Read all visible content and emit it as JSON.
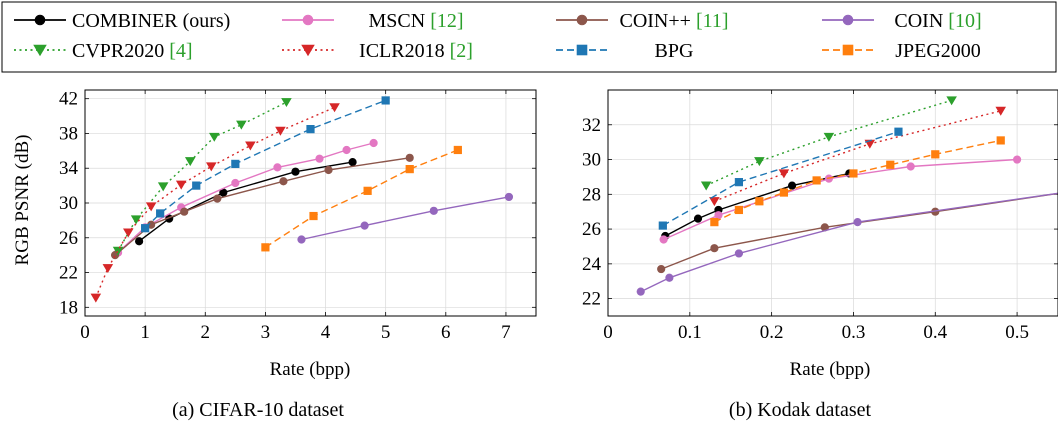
{
  "legend": [
    {
      "label": "COMBINER (ours)",
      "ref": "",
      "color": "#000000",
      "dash": "solid",
      "marker": "circle"
    },
    {
      "label": "MSCN ",
      "ref": "[12]",
      "color": "#e377c2",
      "dash": "solid",
      "marker": "circle"
    },
    {
      "label": "COIN++ ",
      "ref": "[11]",
      "color": "#8c564b",
      "dash": "solid",
      "marker": "circle"
    },
    {
      "label": "COIN ",
      "ref": "[10]",
      "color": "#9467bd",
      "dash": "solid",
      "marker": "circle"
    },
    {
      "label": "CVPR2020 ",
      "ref": "[4]",
      "color": "#2ca02c",
      "dash": "dotted",
      "marker": "triangle-down"
    },
    {
      "label": "ICLR2018 ",
      "ref": "[2]",
      "color": "#d62728",
      "dash": "dotted",
      "marker": "triangle-down"
    },
    {
      "label": "BPG",
      "ref": "",
      "color": "#1f77b4",
      "dash": "dashed",
      "marker": "square"
    },
    {
      "label": "JPEG2000",
      "ref": "",
      "color": "#ff7f0e",
      "dash": "dashed",
      "marker": "square"
    }
  ],
  "chart_data": [
    {
      "type": "line",
      "caption": "(a) CIFAR-10 dataset",
      "xlabel": "Rate (bpp)",
      "ylabel": "RGB PSNR (dB)",
      "xlim": [
        0,
        7.5
      ],
      "ylim": [
        17,
        43
      ],
      "xticks": [
        0,
        1,
        2,
        3,
        4,
        5,
        6,
        7
      ],
      "yticks": [
        18,
        22,
        26,
        30,
        34,
        38,
        42
      ],
      "grid": true,
      "series": [
        {
          "name": "COMBINER (ours)",
          "x": [
            0.9,
            1.4,
            2.3,
            3.5,
            4.45
          ],
          "y": [
            25.6,
            28.2,
            31.2,
            33.6,
            34.7
          ]
        },
        {
          "name": "MSCN",
          "x": [
            0.55,
            1.0,
            1.6,
            2.5,
            3.2,
            3.9,
            4.35,
            4.8
          ],
          "y": [
            24.3,
            27.2,
            29.5,
            32.3,
            34.1,
            35.1,
            36.1,
            36.9
          ]
        },
        {
          "name": "COIN++",
          "x": [
            0.5,
            1.1,
            1.65,
            2.2,
            3.3,
            4.05,
            5.4
          ],
          "y": [
            24.0,
            27.5,
            29.0,
            30.5,
            32.5,
            33.8,
            35.2
          ]
        },
        {
          "name": "COIN",
          "x": [
            3.6,
            4.65,
            5.8,
            7.05
          ],
          "y": [
            25.8,
            27.4,
            29.1,
            30.7
          ]
        },
        {
          "name": "CVPR2020",
          "x": [
            0.55,
            0.85,
            1.3,
            1.75,
            2.15,
            2.6,
            3.35
          ],
          "y": [
            24.5,
            28.1,
            31.9,
            34.8,
            37.6,
            39.0,
            41.6
          ]
        },
        {
          "name": "ICLR2018",
          "x": [
            0.18,
            0.38,
            0.72,
            1.1,
            1.6,
            2.1,
            2.75,
            3.25,
            4.15
          ],
          "y": [
            19.1,
            22.5,
            26.6,
            29.6,
            32.1,
            34.2,
            36.6,
            38.3,
            41.0
          ]
        },
        {
          "name": "BPG",
          "x": [
            1.0,
            1.25,
            1.85,
            2.5,
            3.75,
            5.0
          ],
          "y": [
            27.1,
            28.8,
            32.0,
            34.5,
            38.5,
            41.8
          ]
        },
        {
          "name": "JPEG2000",
          "x": [
            3.0,
            3.8,
            4.7,
            5.4,
            6.2
          ],
          "y": [
            24.9,
            28.5,
            31.4,
            33.9,
            36.1
          ]
        }
      ]
    },
    {
      "type": "line",
      "caption": "(b) Kodak dataset",
      "xlabel": "Rate (bpp)",
      "ylabel": "",
      "xlim": [
        0,
        0.55
      ],
      "ylim": [
        21,
        34
      ],
      "xticks": [
        0,
        0.1,
        0.2,
        0.3,
        0.4,
        0.5
      ],
      "yticks": [
        22,
        24,
        26,
        28,
        30,
        32
      ],
      "grid": true,
      "series": [
        {
          "name": "COMBINER (ours)",
          "x": [
            0.07,
            0.11,
            0.135,
            0.225,
            0.295
          ],
          "y": [
            25.6,
            26.6,
            27.1,
            28.5,
            29.2
          ]
        },
        {
          "name": "MSCN",
          "x": [
            0.068,
            0.135,
            0.27,
            0.37,
            0.5
          ],
          "y": [
            25.4,
            26.8,
            28.9,
            29.6,
            30.0
          ]
        },
        {
          "name": "COIN++",
          "x": [
            0.065,
            0.13,
            0.265,
            0.4,
            0.6
          ],
          "y": [
            23.7,
            24.9,
            26.1,
            27.0,
            28.4
          ]
        },
        {
          "name": "COIN",
          "x": [
            0.04,
            0.075,
            0.16,
            0.305,
            0.6
          ],
          "y": [
            22.4,
            23.2,
            24.6,
            26.4,
            28.4
          ]
        },
        {
          "name": "CVPR2020",
          "x": [
            0.12,
            0.185,
            0.27,
            0.42
          ],
          "y": [
            28.5,
            29.9,
            31.3,
            33.4
          ]
        },
        {
          "name": "ICLR2018",
          "x": [
            0.13,
            0.215,
            0.32,
            0.48
          ],
          "y": [
            27.6,
            29.2,
            30.9,
            32.8
          ]
        },
        {
          "name": "BPG",
          "x": [
            0.067,
            0.16,
            0.355
          ],
          "y": [
            26.2,
            28.7,
            31.6
          ]
        },
        {
          "name": "JPEG2000",
          "x": [
            0.13,
            0.16,
            0.185,
            0.215,
            0.255,
            0.3,
            0.345,
            0.4,
            0.48
          ],
          "y": [
            26.4,
            27.1,
            27.6,
            28.1,
            28.8,
            29.2,
            29.7,
            30.3,
            31.1
          ]
        }
      ]
    }
  ]
}
